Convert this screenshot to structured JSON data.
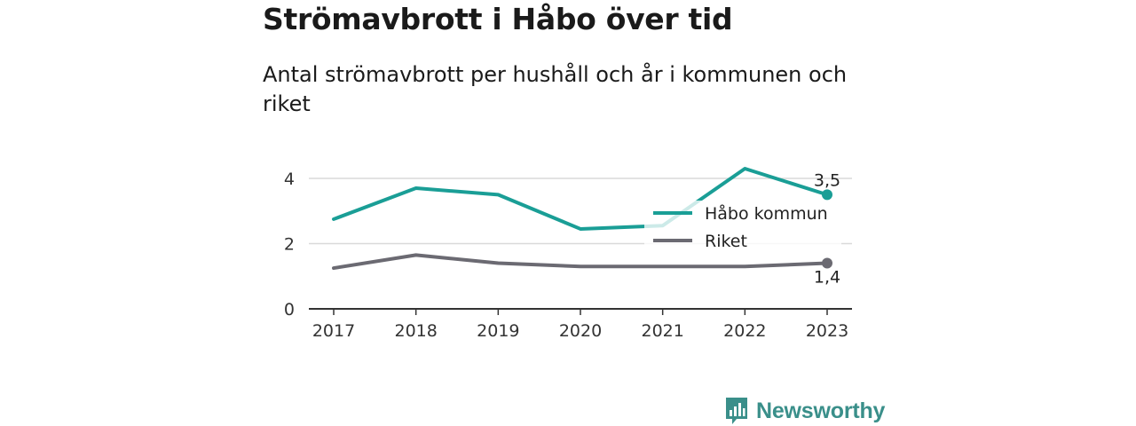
{
  "header": {
    "title": "Strömavbrott i Håbo över tid",
    "subtitle": "Antal strömavbrott per hushåll och år i kommunen och riket"
  },
  "chart_data": {
    "type": "line",
    "x": [
      2017,
      2018,
      2019,
      2020,
      2021,
      2022,
      2023
    ],
    "ylim": [
      0,
      5
    ],
    "yticks": [
      0,
      2,
      4
    ],
    "grid": true,
    "legend_position": "right",
    "series": [
      {
        "name": "Håbo kommun",
        "color": "#1a9e96",
        "values": [
          2.75,
          3.7,
          3.5,
          2.45,
          2.55,
          4.3,
          3.5
        ],
        "end_label": "3,5"
      },
      {
        "name": "Riket",
        "color": "#6b6a72",
        "values": [
          1.25,
          1.65,
          1.4,
          1.3,
          1.3,
          1.3,
          1.4
        ],
        "end_label": "1,4"
      }
    ]
  },
  "branding": {
    "name": "Newsworthy",
    "icon": "bar-chart-logo-icon",
    "color": "#3a8f8a"
  }
}
